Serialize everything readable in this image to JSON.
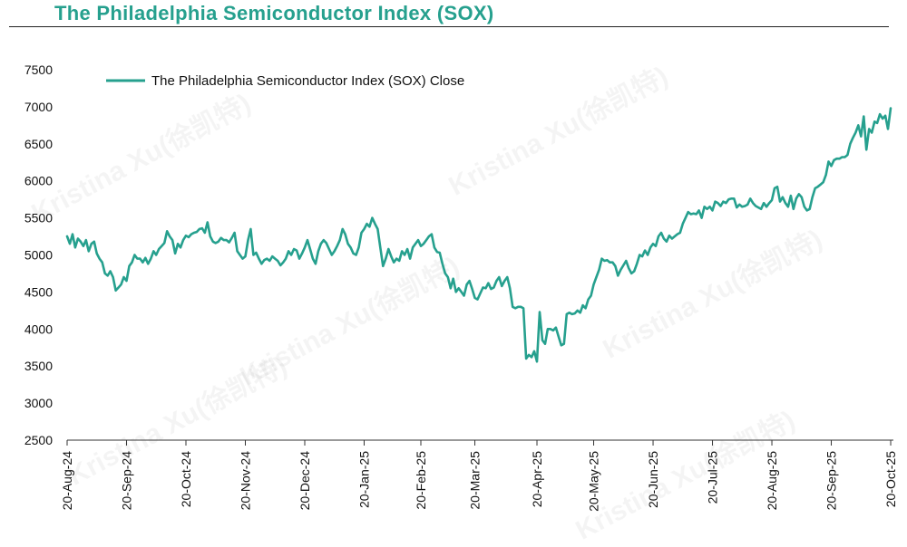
{
  "chart_data": {
    "type": "line",
    "title": "The Philadelphia Semiconductor Index (SOX)",
    "watermark": "Kristina Xu(徐凯特)",
    "series": [
      {
        "name": "The Philadelphia Semiconductor Index (SOX) Close",
        "color": "#26a08e",
        "points": [
          [
            0,
            5250
          ],
          [
            1,
            5150
          ],
          [
            2,
            5280
          ],
          [
            3,
            5100
          ],
          [
            4,
            5220
          ],
          [
            5,
            5180
          ],
          [
            6,
            5120
          ],
          [
            7,
            5200
          ],
          [
            8,
            5050
          ],
          [
            9,
            5150
          ],
          [
            10,
            5180
          ],
          [
            11,
            5020
          ],
          [
            12,
            4950
          ],
          [
            13,
            4900
          ],
          [
            14,
            4750
          ],
          [
            15,
            4720
          ],
          [
            16,
            4780
          ],
          [
            17,
            4700
          ],
          [
            18,
            4520
          ],
          [
            19,
            4560
          ],
          [
            20,
            4600
          ],
          [
            21,
            4700
          ],
          [
            22,
            4650
          ],
          [
            23,
            4850
          ],
          [
            24,
            4900
          ],
          [
            25,
            5000
          ],
          [
            26,
            4950
          ],
          [
            27,
            4950
          ],
          [
            28,
            4900
          ],
          [
            29,
            4960
          ],
          [
            30,
            4880
          ],
          [
            31,
            4950
          ],
          [
            32,
            5050
          ],
          [
            33,
            5000
          ],
          [
            34,
            5080
          ],
          [
            35,
            5120
          ],
          [
            36,
            5160
          ],
          [
            37,
            5320
          ],
          [
            38,
            5250
          ],
          [
            39,
            5200
          ],
          [
            40,
            5020
          ],
          [
            41,
            5150
          ],
          [
            42,
            5100
          ],
          [
            43,
            5200
          ],
          [
            44,
            5260
          ],
          [
            45,
            5240
          ],
          [
            46,
            5280
          ],
          [
            47,
            5300
          ],
          [
            48,
            5310
          ],
          [
            49,
            5350
          ],
          [
            50,
            5360
          ],
          [
            51,
            5300
          ],
          [
            52,
            5440
          ],
          [
            53,
            5250
          ],
          [
            54,
            5180
          ],
          [
            55,
            5160
          ],
          [
            56,
            5180
          ],
          [
            57,
            5230
          ],
          [
            58,
            5200
          ],
          [
            59,
            5200
          ],
          [
            60,
            5170
          ],
          [
            61,
            5230
          ],
          [
            62,
            5300
          ],
          [
            63,
            5050
          ],
          [
            64,
            5000
          ],
          [
            65,
            4950
          ],
          [
            66,
            4980
          ],
          [
            67,
            5200
          ],
          [
            68,
            5350
          ],
          [
            69,
            5000
          ],
          [
            70,
            5030
          ],
          [
            71,
            4950
          ],
          [
            72,
            4880
          ],
          [
            73,
            4930
          ],
          [
            74,
            4950
          ],
          [
            75,
            4920
          ],
          [
            76,
            4980
          ],
          [
            77,
            4950
          ],
          [
            78,
            4920
          ],
          [
            79,
            4860
          ],
          [
            80,
            4900
          ],
          [
            81,
            4950
          ],
          [
            82,
            5050
          ],
          [
            83,
            5000
          ],
          [
            84,
            5080
          ],
          [
            85,
            5060
          ],
          [
            86,
            4950
          ],
          [
            87,
            5020
          ],
          [
            88,
            5100
          ],
          [
            89,
            5200
          ],
          [
            90,
            5080
          ],
          [
            91,
            4950
          ],
          [
            92,
            4880
          ],
          [
            93,
            5050
          ],
          [
            94,
            5150
          ],
          [
            95,
            5200
          ],
          [
            96,
            5160
          ],
          [
            97,
            5080
          ],
          [
            98,
            5000
          ],
          [
            99,
            5050
          ],
          [
            100,
            5120
          ],
          [
            101,
            5200
          ],
          [
            102,
            5350
          ],
          [
            103,
            5280
          ],
          [
            104,
            5150
          ],
          [
            105,
            5100
          ],
          [
            106,
            5020
          ],
          [
            107,
            5000
          ],
          [
            108,
            5100
          ],
          [
            109,
            5300
          ],
          [
            110,
            5350
          ],
          [
            111,
            5420
          ],
          [
            112,
            5380
          ],
          [
            113,
            5500
          ],
          [
            114,
            5420
          ],
          [
            115,
            5350
          ],
          [
            116,
            5100
          ],
          [
            117,
            4850
          ],
          [
            118,
            4950
          ],
          [
            119,
            5080
          ],
          [
            120,
            4980
          ],
          [
            121,
            4900
          ],
          [
            122,
            4950
          ],
          [
            123,
            4920
          ],
          [
            124,
            5050
          ],
          [
            125,
            5000
          ],
          [
            126,
            5080
          ],
          [
            127,
            4950
          ],
          [
            128,
            5100
          ],
          [
            129,
            5150
          ],
          [
            130,
            5200
          ],
          [
            131,
            5120
          ],
          [
            132,
            5150
          ],
          [
            133,
            5200
          ],
          [
            134,
            5250
          ],
          [
            135,
            5280
          ],
          [
            136,
            5100
          ],
          [
            137,
            5040
          ],
          [
            138,
            5030
          ],
          [
            139,
            4880
          ],
          [
            140,
            4750
          ],
          [
            141,
            4700
          ],
          [
            142,
            4550
          ],
          [
            143,
            4680
          ],
          [
            144,
            4500
          ],
          [
            145,
            4550
          ],
          [
            146,
            4500
          ],
          [
            147,
            4450
          ],
          [
            148,
            4600
          ],
          [
            149,
            4650
          ],
          [
            150,
            4540
          ],
          [
            151,
            4420
          ],
          [
            152,
            4400
          ],
          [
            153,
            4480
          ],
          [
            154,
            4560
          ],
          [
            155,
            4550
          ],
          [
            156,
            4620
          ],
          [
            157,
            4540
          ],
          [
            158,
            4560
          ],
          [
            159,
            4650
          ],
          [
            160,
            4700
          ],
          [
            161,
            4580
          ],
          [
            162,
            4650
          ],
          [
            163,
            4700
          ],
          [
            164,
            4550
          ],
          [
            165,
            4300
          ],
          [
            166,
            4280
          ],
          [
            167,
            4300
          ],
          [
            168,
            4300
          ],
          [
            169,
            4280
          ],
          [
            170,
            3600
          ],
          [
            171,
            3650
          ],
          [
            172,
            3620
          ],
          [
            173,
            3700
          ],
          [
            174,
            3560
          ],
          [
            175,
            4230
          ],
          [
            176,
            3850
          ],
          [
            177,
            3800
          ],
          [
            178,
            4000
          ],
          [
            179,
            4000
          ],
          [
            180,
            3980
          ],
          [
            181,
            4020
          ],
          [
            182,
            3900
          ],
          [
            183,
            3780
          ],
          [
            184,
            3800
          ],
          [
            185,
            4200
          ],
          [
            186,
            4220
          ],
          [
            187,
            4200
          ],
          [
            188,
            4210
          ],
          [
            189,
            4250
          ],
          [
            190,
            4220
          ],
          [
            191,
            4320
          ],
          [
            192,
            4280
          ],
          [
            193,
            4400
          ],
          [
            194,
            4450
          ],
          [
            195,
            4600
          ],
          [
            196,
            4700
          ],
          [
            197,
            4800
          ],
          [
            198,
            4950
          ],
          [
            199,
            4920
          ],
          [
            200,
            4930
          ],
          [
            201,
            4900
          ],
          [
            202,
            4900
          ],
          [
            203,
            4850
          ],
          [
            204,
            4720
          ],
          [
            205,
            4800
          ],
          [
            206,
            4860
          ],
          [
            207,
            4920
          ],
          [
            208,
            4820
          ],
          [
            209,
            4750
          ],
          [
            210,
            4780
          ],
          [
            211,
            4880
          ],
          [
            212,
            5000
          ],
          [
            213,
            4980
          ],
          [
            214,
            5060
          ],
          [
            215,
            5000
          ],
          [
            216,
            5100
          ],
          [
            217,
            5150
          ],
          [
            218,
            5120
          ],
          [
            219,
            5250
          ],
          [
            220,
            5300
          ],
          [
            221,
            5220
          ],
          [
            222,
            5180
          ],
          [
            223,
            5260
          ],
          [
            224,
            5220
          ],
          [
            225,
            5250
          ],
          [
            226,
            5280
          ],
          [
            227,
            5300
          ],
          [
            228,
            5420
          ],
          [
            229,
            5500
          ],
          [
            230,
            5580
          ],
          [
            231,
            5550
          ],
          [
            232,
            5560
          ],
          [
            233,
            5550
          ],
          [
            234,
            5600
          ],
          [
            235,
            5500
          ],
          [
            236,
            5650
          ],
          [
            237,
            5620
          ],
          [
            238,
            5650
          ],
          [
            239,
            5600
          ],
          [
            240,
            5720
          ],
          [
            241,
            5700
          ],
          [
            242,
            5660
          ],
          [
            243,
            5720
          ],
          [
            244,
            5700
          ],
          [
            245,
            5750
          ],
          [
            246,
            5760
          ],
          [
            247,
            5760
          ],
          [
            248,
            5640
          ],
          [
            249,
            5680
          ],
          [
            250,
            5650
          ],
          [
            251,
            5660
          ],
          [
            252,
            5680
          ],
          [
            253,
            5760
          ],
          [
            254,
            5700
          ],
          [
            255,
            5660
          ],
          [
            256,
            5640
          ],
          [
            257,
            5620
          ],
          [
            258,
            5700
          ],
          [
            259,
            5650
          ],
          [
            260,
            5700
          ],
          [
            261,
            5740
          ],
          [
            262,
            5900
          ],
          [
            263,
            5920
          ],
          [
            264,
            5720
          ],
          [
            265,
            5780
          ],
          [
            266,
            5700
          ],
          [
            267,
            5650
          ],
          [
            268,
            5800
          ],
          [
            269,
            5620
          ],
          [
            270,
            5760
          ],
          [
            271,
            5820
          ],
          [
            272,
            5780
          ],
          [
            273,
            5650
          ],
          [
            274,
            5600
          ],
          [
            275,
            5620
          ],
          [
            276,
            5780
          ],
          [
            277,
            5900
          ],
          [
            278,
            5920
          ],
          [
            279,
            5950
          ],
          [
            280,
            5980
          ],
          [
            281,
            6080
          ],
          [
            282,
            6260
          ],
          [
            283,
            6200
          ],
          [
            284,
            6280
          ],
          [
            285,
            6300
          ],
          [
            286,
            6300
          ],
          [
            287,
            6320
          ],
          [
            288,
            6320
          ],
          [
            289,
            6350
          ],
          [
            290,
            6500
          ],
          [
            291,
            6580
          ],
          [
            292,
            6650
          ],
          [
            293,
            6750
          ],
          [
            294,
            6600
          ],
          [
            295,
            6870
          ],
          [
            296,
            6420
          ],
          [
            297,
            6700
          ],
          [
            298,
            6650
          ],
          [
            299,
            6800
          ],
          [
            300,
            6780
          ],
          [
            301,
            6900
          ],
          [
            302,
            6840
          ],
          [
            303,
            6880
          ],
          [
            304,
            6700
          ],
          [
            305,
            6980
          ]
        ]
      }
    ],
    "x_ticks": [
      {
        "label": "20-Aug-24",
        "x": 0
      },
      {
        "label": "20-Sep-24",
        "x": 22
      },
      {
        "label": "20-Oct-24",
        "x": 44
      },
      {
        "label": "20-Nov-24",
        "x": 66
      },
      {
        "label": "20-Dec-24",
        "x": 88
      },
      {
        "label": "20-Jan-25",
        "x": 110
      },
      {
        "label": "20-Feb-25",
        "x": 131
      },
      {
        "label": "20-Mar-25",
        "x": 151
      },
      {
        "label": "20-Apr-25",
        "x": 174
      },
      {
        "label": "20-May-25",
        "x": 195
      },
      {
        "label": "20-Jun-25",
        "x": 217
      },
      {
        "label": "20-Jul-25",
        "x": 239
      },
      {
        "label": "20-Aug-25",
        "x": 261
      },
      {
        "label": "20-Sep-25",
        "x": 283
      },
      {
        "label": "20-Oct-25",
        "x": 305
      }
    ],
    "xlim": [
      0,
      306
    ],
    "ylim": [
      2500,
      7500
    ],
    "yticks": [
      2500,
      3000,
      3500,
      4000,
      4500,
      5000,
      5500,
      6000,
      6500,
      7000,
      7500
    ],
    "xlabel": "",
    "ylabel": "",
    "grid": false,
    "legend_position": "top-left"
  }
}
